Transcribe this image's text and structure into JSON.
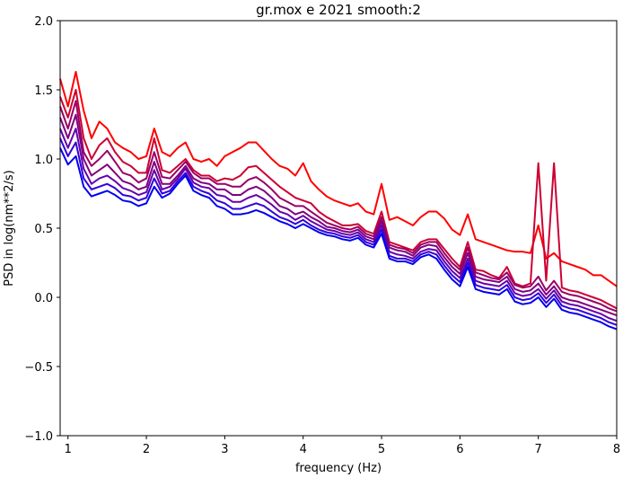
{
  "chart_data": {
    "type": "line",
    "title": "gr.mox e 2021 smooth:2",
    "xlabel": "frequency (Hz)",
    "ylabel": "PSD in log(nm**2/s)",
    "xlim": [
      0.9,
      8.0
    ],
    "ylim": [
      -1.0,
      2.0
    ],
    "xticks": [
      1,
      2,
      3,
      4,
      5,
      6,
      7,
      8
    ],
    "yticks": [
      -1.0,
      -0.5,
      0.0,
      0.5,
      1.0,
      1.5,
      2.0
    ],
    "ytick_labels": [
      "−1.0",
      "−0.5",
      "0.0",
      "0.5",
      "1.0",
      "1.5",
      "2.0"
    ],
    "grid": false,
    "x": [
      0.9,
      1.0,
      1.1,
      1.2,
      1.3,
      1.4,
      1.5,
      1.6,
      1.7,
      1.8,
      1.9,
      2.0,
      2.1,
      2.2,
      2.3,
      2.4,
      2.5,
      2.6,
      2.7,
      2.8,
      2.9,
      3.0,
      3.1,
      3.2,
      3.3,
      3.4,
      3.5,
      3.6,
      3.7,
      3.8,
      3.9,
      4.0,
      4.1,
      4.2,
      4.3,
      4.4,
      4.5,
      4.6,
      4.7,
      4.8,
      4.9,
      5.0,
      5.1,
      5.2,
      5.3,
      5.4,
      5.5,
      5.6,
      5.7,
      5.8,
      5.9,
      6.0,
      6.1,
      6.2,
      6.3,
      6.4,
      6.5,
      6.6,
      6.7,
      6.8,
      6.9,
      7.0,
      7.1,
      7.2,
      7.3,
      7.4,
      7.5,
      7.6,
      7.7,
      7.8,
      7.9,
      8.0
    ],
    "series": [
      {
        "color": "#ff0000",
        "values": [
          1.58,
          1.38,
          1.63,
          1.35,
          1.15,
          1.27,
          1.22,
          1.12,
          1.08,
          1.05,
          1.0,
          1.02,
          1.22,
          1.05,
          1.02,
          1.08,
          1.12,
          1.0,
          0.98,
          1.0,
          0.95,
          1.02,
          1.05,
          1.08,
          1.12,
          1.12,
          1.06,
          1.0,
          0.95,
          0.93,
          0.88,
          0.97,
          0.84,
          0.78,
          0.73,
          0.7,
          0.68,
          0.66,
          0.68,
          0.62,
          0.6,
          0.82,
          0.56,
          0.58,
          0.55,
          0.52,
          0.58,
          0.62,
          0.62,
          0.57,
          0.49,
          0.45,
          0.6,
          0.42,
          0.4,
          0.38,
          0.36,
          0.34,
          0.33,
          0.33,
          0.32,
          0.52,
          0.28,
          0.32,
          0.26,
          0.24,
          0.22,
          0.2,
          0.16,
          0.16,
          0.12,
          0.08
        ]
      },
      {
        "color": "#cc0033",
        "values": [
          1.45,
          1.3,
          1.5,
          1.15,
          1.0,
          1.1,
          1.15,
          1.05,
          0.98,
          0.95,
          0.9,
          0.9,
          1.15,
          0.92,
          0.9,
          0.95,
          1.0,
          0.92,
          0.88,
          0.88,
          0.84,
          0.86,
          0.85,
          0.88,
          0.94,
          0.95,
          0.9,
          0.85,
          0.8,
          0.76,
          0.72,
          0.7,
          0.68,
          0.62,
          0.58,
          0.55,
          0.52,
          0.52,
          0.53,
          0.48,
          0.46,
          0.62,
          0.4,
          0.38,
          0.36,
          0.34,
          0.4,
          0.42,
          0.42,
          0.35,
          0.28,
          0.22,
          0.4,
          0.2,
          0.19,
          0.16,
          0.14,
          0.22,
          0.1,
          0.08,
          0.1,
          0.97,
          0.12,
          0.97,
          0.07,
          0.05,
          0.04,
          0.02,
          0.0,
          -0.02,
          -0.05,
          -0.08
        ]
      },
      {
        "color": "#990066",
        "values": [
          1.38,
          1.22,
          1.42,
          1.05,
          0.95,
          1.0,
          1.06,
          0.98,
          0.9,
          0.88,
          0.83,
          0.86,
          1.05,
          0.87,
          0.86,
          0.92,
          0.98,
          0.9,
          0.86,
          0.86,
          0.82,
          0.82,
          0.8,
          0.8,
          0.85,
          0.87,
          0.83,
          0.78,
          0.72,
          0.69,
          0.66,
          0.66,
          0.62,
          0.58,
          0.54,
          0.52,
          0.5,
          0.49,
          0.51,
          0.46,
          0.44,
          0.58,
          0.38,
          0.36,
          0.35,
          0.32,
          0.38,
          0.4,
          0.4,
          0.32,
          0.25,
          0.2,
          0.36,
          0.18,
          0.16,
          0.14,
          0.13,
          0.18,
          0.09,
          0.07,
          0.08,
          0.15,
          0.05,
          0.12,
          0.04,
          0.02,
          0.01,
          -0.01,
          -0.03,
          -0.05,
          -0.08,
          -0.1
        ]
      },
      {
        "color": "#800080",
        "values": [
          1.3,
          1.15,
          1.32,
          1.0,
          0.88,
          0.92,
          0.96,
          0.9,
          0.84,
          0.82,
          0.78,
          0.8,
          0.98,
          0.82,
          0.82,
          0.88,
          0.95,
          0.86,
          0.83,
          0.82,
          0.78,
          0.78,
          0.74,
          0.74,
          0.78,
          0.8,
          0.77,
          0.72,
          0.66,
          0.64,
          0.6,
          0.62,
          0.58,
          0.55,
          0.51,
          0.5,
          0.48,
          0.47,
          0.49,
          0.44,
          0.42,
          0.55,
          0.36,
          0.34,
          0.33,
          0.3,
          0.36,
          0.38,
          0.37,
          0.29,
          0.22,
          0.17,
          0.32,
          0.15,
          0.13,
          0.12,
          0.11,
          0.15,
          0.06,
          0.04,
          0.05,
          0.1,
          0.02,
          0.08,
          0.0,
          -0.02,
          -0.03,
          -0.05,
          -0.07,
          -0.09,
          -0.11,
          -0.13
        ]
      },
      {
        "color": "#6600aa",
        "values": [
          1.22,
          1.08,
          1.22,
          0.93,
          0.82,
          0.86,
          0.88,
          0.84,
          0.79,
          0.77,
          0.74,
          0.76,
          0.92,
          0.78,
          0.8,
          0.86,
          0.93,
          0.83,
          0.8,
          0.79,
          0.74,
          0.73,
          0.69,
          0.69,
          0.72,
          0.74,
          0.71,
          0.67,
          0.62,
          0.6,
          0.56,
          0.59,
          0.55,
          0.52,
          0.49,
          0.48,
          0.46,
          0.45,
          0.47,
          0.42,
          0.4,
          0.52,
          0.33,
          0.31,
          0.3,
          0.28,
          0.33,
          0.35,
          0.34,
          0.26,
          0.19,
          0.14,
          0.28,
          0.12,
          0.1,
          0.09,
          0.08,
          0.12,
          0.03,
          0.01,
          0.02,
          0.06,
          -0.01,
          0.05,
          -0.03,
          -0.05,
          -0.06,
          -0.08,
          -0.1,
          -0.12,
          -0.15,
          -0.17
        ]
      },
      {
        "color": "#3300dd",
        "values": [
          1.15,
          1.02,
          1.12,
          0.86,
          0.78,
          0.8,
          0.82,
          0.79,
          0.74,
          0.73,
          0.7,
          0.72,
          0.86,
          0.75,
          0.77,
          0.84,
          0.9,
          0.8,
          0.77,
          0.75,
          0.7,
          0.68,
          0.64,
          0.64,
          0.66,
          0.68,
          0.66,
          0.62,
          0.58,
          0.56,
          0.53,
          0.56,
          0.52,
          0.49,
          0.47,
          0.46,
          0.44,
          0.43,
          0.45,
          0.4,
          0.38,
          0.49,
          0.3,
          0.28,
          0.28,
          0.26,
          0.31,
          0.33,
          0.31,
          0.23,
          0.16,
          0.11,
          0.25,
          0.09,
          0.07,
          0.06,
          0.05,
          0.09,
          0.0,
          -0.02,
          -0.01,
          0.03,
          -0.04,
          0.02,
          -0.06,
          -0.08,
          -0.09,
          -0.11,
          -0.13,
          -0.15,
          -0.18,
          -0.2
        ]
      },
      {
        "color": "#0000ee",
        "values": [
          1.08,
          0.96,
          1.02,
          0.8,
          0.73,
          0.75,
          0.77,
          0.74,
          0.7,
          0.69,
          0.66,
          0.68,
          0.8,
          0.72,
          0.75,
          0.82,
          0.88,
          0.77,
          0.74,
          0.72,
          0.66,
          0.64,
          0.6,
          0.6,
          0.61,
          0.63,
          0.61,
          0.58,
          0.55,
          0.53,
          0.5,
          0.53,
          0.5,
          0.47,
          0.45,
          0.44,
          0.42,
          0.41,
          0.43,
          0.38,
          0.36,
          0.46,
          0.28,
          0.26,
          0.26,
          0.24,
          0.29,
          0.31,
          0.28,
          0.2,
          0.13,
          0.08,
          0.22,
          0.06,
          0.04,
          0.03,
          0.02,
          0.06,
          -0.03,
          -0.05,
          -0.04,
          0.0,
          -0.07,
          -0.01,
          -0.09,
          -0.11,
          -0.12,
          -0.14,
          -0.16,
          -0.18,
          -0.21,
          -0.23
        ]
      }
    ]
  }
}
